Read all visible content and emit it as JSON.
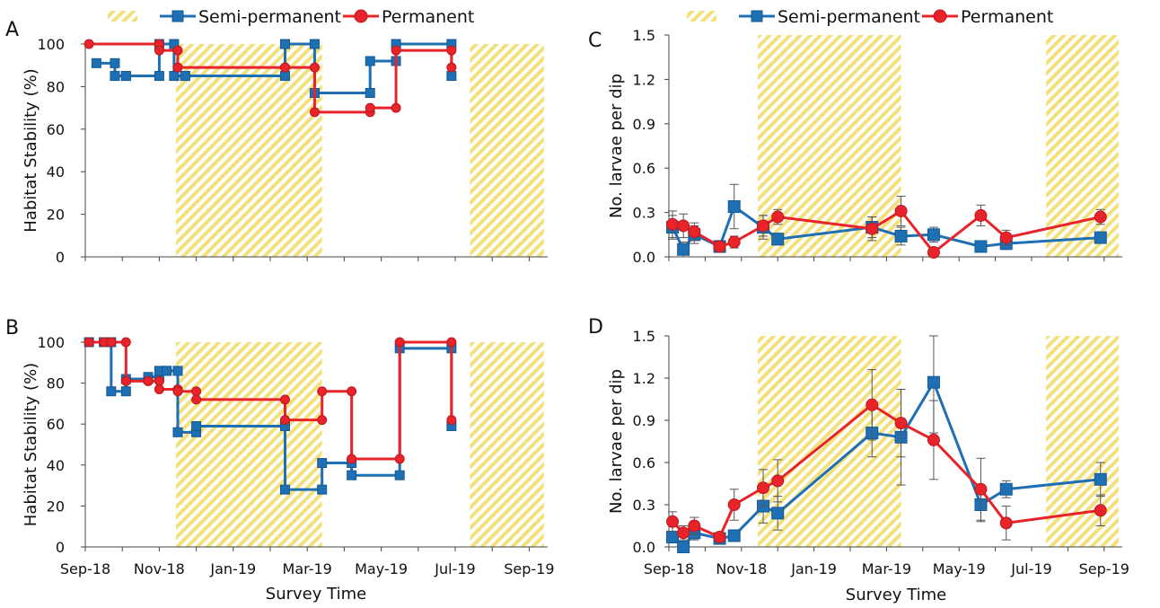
{
  "x_ticks": [
    "Sep-18",
    "Nov-18",
    "Jan-19",
    "Mar-19",
    "May-19",
    "Jul-19",
    "Sep-19"
  ],
  "x_axis_label": "Survey Time",
  "legend": {
    "series": [
      "Semi-permanent",
      "Permanent"
    ]
  },
  "colors": {
    "semi": "#1f6fb4",
    "perm": "#e8232a",
    "shade": "#f4e07a"
  },
  "chart_data": [
    {
      "panel": "A",
      "type": "line",
      "step": true,
      "ylabel": "Habitat Stability (%)",
      "ylim": [
        0,
        100
      ],
      "yticks": [
        "0",
        "20",
        "40",
        "60",
        "80",
        "100"
      ],
      "shaded": [
        [
          2.45,
          6.4
        ],
        [
          10.4,
          12.4
        ]
      ],
      "series": [
        {
          "name": "Semi-permanent",
          "x": [
            0.3,
            0.8,
            1.1,
            2.0,
            2.4,
            2.7,
            5.4,
            6.2,
            7.7,
            8.4,
            9.9
          ],
          "y": [
            91,
            85,
            85,
            100,
            85,
            85,
            100,
            77,
            92,
            100,
            85
          ]
        },
        {
          "name": "Permanent",
          "x": [
            0.1,
            2.0,
            2.5,
            5.4,
            6.2,
            7.7,
            8.4,
            9.9
          ],
          "y": [
            100,
            97,
            89,
            89,
            68,
            70,
            97,
            89
          ]
        }
      ]
    },
    {
      "panel": "B",
      "type": "line",
      "step": true,
      "ylabel": "Habitat Stability (%)",
      "ylim": [
        0,
        100
      ],
      "yticks": [
        "0",
        "20",
        "40",
        "60",
        "80",
        "100"
      ],
      "shaded": [
        [
          2.45,
          6.4
        ],
        [
          10.4,
          12.4
        ]
      ],
      "series": [
        {
          "name": "Semi-permanent",
          "x": [
            0.1,
            0.5,
            0.7,
            1.1,
            1.7,
            2.0,
            2.2,
            2.5,
            3.0,
            5.4,
            6.4,
            7.2,
            8.5,
            9.9
          ],
          "y": [
            100,
            100,
            76,
            82,
            83,
            86,
            86,
            56,
            59,
            28,
            41,
            35,
            97,
            59
          ]
        },
        {
          "name": "Permanent",
          "x": [
            0.1,
            0.5,
            0.7,
            1.1,
            1.7,
            2.0,
            2.5,
            3.0,
            5.4,
            6.4,
            7.2,
            8.5,
            9.9
          ],
          "y": [
            100,
            100,
            100,
            81,
            81,
            77,
            76,
            72,
            62,
            76,
            43,
            100,
            62
          ]
        }
      ]
    },
    {
      "panel": "C",
      "type": "line",
      "ylabel": "No. larvae per dip",
      "ylim": [
        0,
        1.5
      ],
      "yticks": [
        "0.0",
        "0.3",
        "0.6",
        "0.9",
        "1.2",
        "1.5"
      ],
      "shaded": [
        [
          2.45,
          6.4
        ],
        [
          10.4,
          12.4
        ]
      ],
      "series": [
        {
          "name": "Semi-permanent",
          "x": [
            0.1,
            0.4,
            0.7,
            1.4,
            1.8,
            2.6,
            3.0,
            5.6,
            6.4,
            7.3,
            8.6,
            9.3,
            11.9
          ],
          "y": [
            0.2,
            0.05,
            0.15,
            0.07,
            0.34,
            0.2,
            0.12,
            0.2,
            0.14,
            0.15,
            0.07,
            0.09,
            0.13
          ],
          "err": [
            0.08,
            0.05,
            0.06,
            0.04,
            0.15,
            0.08,
            0.04,
            0.07,
            0.06,
            0.05,
            0.03,
            0.04,
            0.03
          ]
        },
        {
          "name": "Permanent",
          "x": [
            0.1,
            0.4,
            0.7,
            1.4,
            1.8,
            2.6,
            3.0,
            5.6,
            6.4,
            7.3,
            8.6,
            9.3,
            11.9
          ],
          "y": [
            0.22,
            0.21,
            0.17,
            0.07,
            0.1,
            0.21,
            0.27,
            0.19,
            0.31,
            0.03,
            0.28,
            0.13,
            0.27
          ],
          "err": [
            0.09,
            0.08,
            0.06,
            0.03,
            0.04,
            0.07,
            0.05,
            0.08,
            0.1,
            0.02,
            0.07,
            0.05,
            0.05
          ]
        }
      ]
    },
    {
      "panel": "D",
      "type": "line",
      "ylabel": "No. larvae per dip",
      "ylim": [
        0,
        1.5
      ],
      "yticks": [
        "0.0",
        "0.3",
        "0.6",
        "0.9",
        "1.2",
        "1.5"
      ],
      "shaded": [
        [
          2.45,
          6.4
        ],
        [
          10.4,
          12.4
        ]
      ],
      "series": [
        {
          "name": "Semi-permanent",
          "x": [
            0.1,
            0.4,
            0.7,
            1.4,
            1.8,
            2.6,
            3.0,
            5.6,
            6.4,
            7.3,
            8.6,
            9.3,
            11.9
          ],
          "y": [
            0.07,
            0.0,
            0.1,
            0.06,
            0.08,
            0.29,
            0.24,
            0.81,
            0.78,
            1.17,
            0.3,
            0.41,
            0.48
          ],
          "err": [
            0.04,
            0.02,
            0.05,
            0.03,
            0.04,
            0.12,
            0.12,
            0.17,
            0.34,
            0.36,
            0.12,
            0.06,
            0.12
          ]
        },
        {
          "name": "Permanent",
          "x": [
            0.1,
            0.4,
            0.7,
            1.4,
            1.8,
            2.6,
            3.0,
            5.6,
            6.4,
            7.3,
            8.6,
            9.3,
            11.9
          ],
          "y": [
            0.18,
            0.1,
            0.15,
            0.07,
            0.3,
            0.42,
            0.47,
            1.01,
            0.88,
            0.76,
            0.41,
            0.17,
            0.26
          ],
          "err": [
            0.07,
            0.05,
            0.06,
            0.03,
            0.11,
            0.13,
            0.15,
            0.25,
            0.24,
            0.28,
            0.22,
            0.12,
            0.11
          ]
        }
      ]
    }
  ]
}
